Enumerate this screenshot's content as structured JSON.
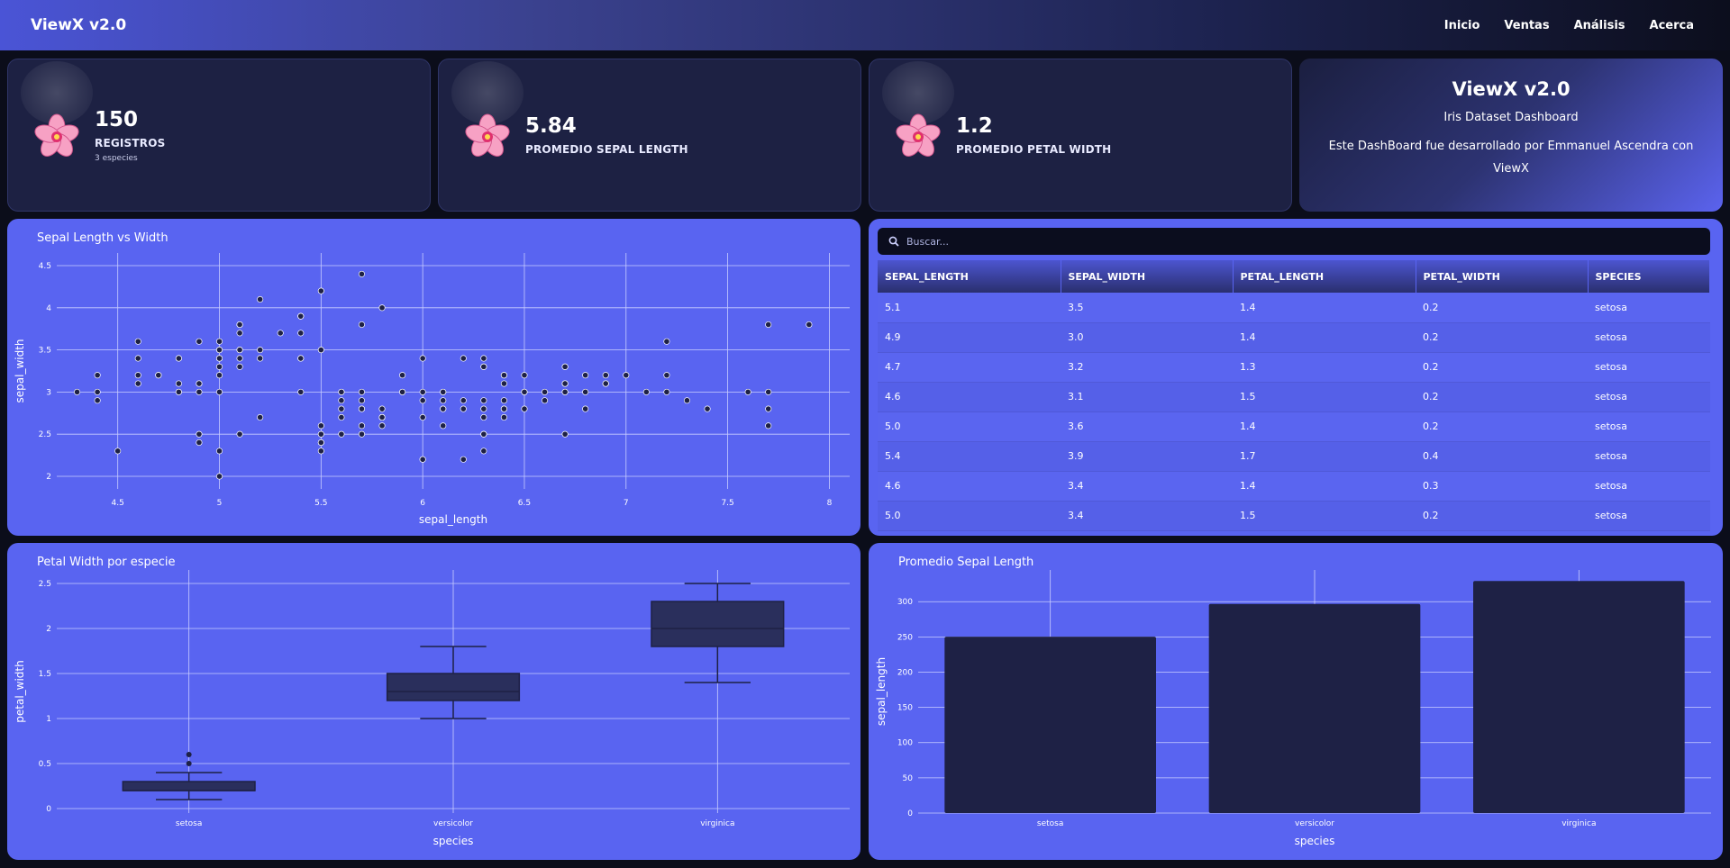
{
  "navbar": {
    "brand": "ViewX v2.0",
    "links": [
      "Inicio",
      "Ventas",
      "Análisis",
      "Acerca"
    ]
  },
  "kpis": [
    {
      "value": "150",
      "label": "REGISTROS",
      "sub": "3 especies",
      "icon": "cherry-blossom-icon"
    },
    {
      "value": "5.84",
      "label": "PROMEDIO SEPAL LENGTH",
      "icon": "cherry-blossom-icon"
    },
    {
      "value": "1.2",
      "label": "PROMEDIO PETAL WIDTH",
      "icon": "cherry-blossom-icon"
    }
  ],
  "info": {
    "title": "ViewX v2.0",
    "subtitle": "Iris Dataset Dashboard",
    "description": "Este DashBoard fue desarrollado por Emmanuel Ascendra con ViewX"
  },
  "table": {
    "search_placeholder": "Buscar...",
    "search_icon": "search-icon",
    "columns": [
      "SEPAL_LENGTH",
      "SEPAL_WIDTH",
      "PETAL_LENGTH",
      "PETAL_WIDTH",
      "SPECIES"
    ],
    "rows": [
      [
        "5.1",
        "3.5",
        "1.4",
        "0.2",
        "setosa"
      ],
      [
        "4.9",
        "3.0",
        "1.4",
        "0.2",
        "setosa"
      ],
      [
        "4.7",
        "3.2",
        "1.3",
        "0.2",
        "setosa"
      ],
      [
        "4.6",
        "3.1",
        "1.5",
        "0.2",
        "setosa"
      ],
      [
        "5.0",
        "3.6",
        "1.4",
        "0.2",
        "setosa"
      ],
      [
        "5.4",
        "3.9",
        "1.7",
        "0.4",
        "setosa"
      ],
      [
        "4.6",
        "3.4",
        "1.4",
        "0.3",
        "setosa"
      ],
      [
        "5.0",
        "3.4",
        "1.5",
        "0.2",
        "setosa"
      ]
    ]
  },
  "colors": {
    "panel": "#5964f1",
    "mark": "#1e2145",
    "grid": "#c9cdff"
  },
  "chart_data": [
    {
      "type": "scatter",
      "title": "Sepal Length vs Width",
      "xlabel": "sepal_length",
      "ylabel": "sepal_width",
      "xlim": [
        4.2,
        8.1
      ],
      "ylim": [
        1.85,
        4.65
      ],
      "xticks": [
        4.5,
        5,
        5.5,
        6,
        6.5,
        7,
        7.5,
        8
      ],
      "yticks": [
        2,
        2.5,
        3,
        3.5,
        4,
        4.5
      ],
      "points": [
        [
          5.1,
          3.5
        ],
        [
          4.9,
          3.0
        ],
        [
          4.7,
          3.2
        ],
        [
          4.6,
          3.1
        ],
        [
          5.0,
          3.6
        ],
        [
          5.4,
          3.9
        ],
        [
          4.6,
          3.4
        ],
        [
          5.0,
          3.4
        ],
        [
          4.4,
          2.9
        ],
        [
          4.9,
          3.1
        ],
        [
          5.4,
          3.7
        ],
        [
          4.8,
          3.4
        ],
        [
          4.8,
          3.0
        ],
        [
          4.3,
          3.0
        ],
        [
          5.8,
          4.0
        ],
        [
          5.7,
          4.4
        ],
        [
          5.4,
          3.9
        ],
        [
          5.1,
          3.5
        ],
        [
          5.7,
          3.8
        ],
        [
          5.1,
          3.8
        ],
        [
          5.4,
          3.4
        ],
        [
          5.1,
          3.7
        ],
        [
          4.6,
          3.6
        ],
        [
          5.1,
          3.3
        ],
        [
          4.8,
          3.4
        ],
        [
          5.0,
          3.0
        ],
        [
          5.0,
          3.4
        ],
        [
          5.2,
          3.5
        ],
        [
          5.2,
          3.4
        ],
        [
          4.7,
          3.2
        ],
        [
          4.8,
          3.1
        ],
        [
          5.4,
          3.4
        ],
        [
          5.2,
          4.1
        ],
        [
          5.5,
          4.2
        ],
        [
          4.9,
          3.1
        ],
        [
          5.0,
          3.2
        ],
        [
          5.5,
          3.5
        ],
        [
          4.9,
          3.6
        ],
        [
          4.4,
          3.0
        ],
        [
          5.1,
          3.4
        ],
        [
          5.0,
          3.5
        ],
        [
          4.5,
          2.3
        ],
        [
          4.4,
          3.2
        ],
        [
          5.0,
          3.5
        ],
        [
          5.1,
          3.8
        ],
        [
          4.8,
          3.0
        ],
        [
          5.1,
          3.8
        ],
        [
          4.6,
          3.2
        ],
        [
          5.3,
          3.7
        ],
        [
          5.0,
          3.3
        ],
        [
          7.0,
          3.2
        ],
        [
          6.4,
          3.2
        ],
        [
          6.9,
          3.1
        ],
        [
          5.5,
          2.3
        ],
        [
          6.5,
          2.8
        ],
        [
          5.7,
          2.8
        ],
        [
          6.3,
          3.3
        ],
        [
          4.9,
          2.4
        ],
        [
          6.6,
          2.9
        ],
        [
          5.2,
          2.7
        ],
        [
          5.0,
          2.0
        ],
        [
          5.9,
          3.0
        ],
        [
          6.0,
          2.2
        ],
        [
          6.1,
          2.9
        ],
        [
          5.6,
          2.9
        ],
        [
          6.7,
          3.1
        ],
        [
          5.6,
          3.0
        ],
        [
          5.8,
          2.7
        ],
        [
          6.2,
          2.2
        ],
        [
          5.6,
          2.5
        ],
        [
          5.9,
          3.2
        ],
        [
          6.1,
          2.8
        ],
        [
          6.3,
          2.5
        ],
        [
          6.1,
          2.8
        ],
        [
          6.4,
          2.9
        ],
        [
          6.6,
          3.0
        ],
        [
          6.8,
          2.8
        ],
        [
          6.7,
          3.0
        ],
        [
          6.0,
          2.9
        ],
        [
          5.7,
          2.6
        ],
        [
          5.5,
          2.4
        ],
        [
          5.5,
          2.4
        ],
        [
          5.8,
          2.7
        ],
        [
          6.0,
          2.7
        ],
        [
          5.4,
          3.0
        ],
        [
          6.0,
          3.4
        ],
        [
          6.7,
          3.1
        ],
        [
          6.3,
          2.3
        ],
        [
          5.6,
          3.0
        ],
        [
          5.5,
          2.5
        ],
        [
          5.5,
          2.6
        ],
        [
          6.1,
          3.0
        ],
        [
          5.8,
          2.6
        ],
        [
          5.0,
          2.3
        ],
        [
          5.6,
          2.7
        ],
        [
          5.7,
          3.0
        ],
        [
          5.7,
          2.9
        ],
        [
          6.2,
          2.9
        ],
        [
          5.1,
          2.5
        ],
        [
          5.7,
          2.8
        ],
        [
          6.3,
          3.3
        ],
        [
          5.8,
          2.7
        ],
        [
          7.1,
          3.0
        ],
        [
          6.3,
          2.9
        ],
        [
          6.5,
          3.0
        ],
        [
          7.6,
          3.0
        ],
        [
          4.9,
          2.5
        ],
        [
          7.3,
          2.9
        ],
        [
          6.7,
          2.5
        ],
        [
          7.2,
          3.6
        ],
        [
          6.5,
          3.2
        ],
        [
          6.4,
          2.7
        ],
        [
          6.8,
          3.0
        ],
        [
          5.7,
          2.5
        ],
        [
          5.8,
          2.8
        ],
        [
          6.4,
          3.2
        ],
        [
          6.5,
          3.0
        ],
        [
          7.7,
          3.8
        ],
        [
          7.7,
          2.6
        ],
        [
          6.0,
          2.2
        ],
        [
          6.9,
          3.2
        ],
        [
          5.6,
          2.8
        ],
        [
          7.7,
          2.8
        ],
        [
          6.3,
          2.7
        ],
        [
          6.7,
          3.3
        ],
        [
          7.2,
          3.2
        ],
        [
          6.2,
          2.8
        ],
        [
          6.1,
          3.0
        ],
        [
          6.4,
          2.8
        ],
        [
          7.2,
          3.0
        ],
        [
          7.4,
          2.8
        ],
        [
          7.9,
          3.8
        ],
        [
          6.4,
          2.8
        ],
        [
          6.3,
          2.8
        ],
        [
          6.1,
          2.6
        ],
        [
          7.7,
          3.0
        ],
        [
          6.3,
          3.4
        ],
        [
          6.4,
          3.1
        ],
        [
          6.0,
          3.0
        ],
        [
          6.9,
          3.1
        ],
        [
          6.7,
          3.1
        ],
        [
          6.9,
          3.1
        ],
        [
          5.8,
          2.7
        ],
        [
          6.8,
          3.2
        ],
        [
          6.7,
          3.3
        ],
        [
          6.7,
          3.0
        ],
        [
          6.3,
          2.5
        ],
        [
          6.5,
          3.0
        ],
        [
          6.2,
          3.4
        ],
        [
          5.9,
          3.0
        ]
      ]
    },
    {
      "type": "box",
      "title": "Petal Width por especie",
      "xlabel": "species",
      "ylabel": "petal_width",
      "ylim": [
        -0.05,
        2.65
      ],
      "yticks": [
        0,
        0.5,
        1,
        1.5,
        2,
        2.5
      ],
      "categories": [
        "setosa",
        "versicolor",
        "virginica"
      ],
      "boxes": [
        {
          "min": 0.1,
          "q1": 0.2,
          "median": 0.2,
          "q3": 0.3,
          "max": 0.4,
          "outliers": [
            0.5,
            0.6
          ]
        },
        {
          "min": 1.0,
          "q1": 1.2,
          "median": 1.3,
          "q3": 1.5,
          "max": 1.8,
          "outliers": []
        },
        {
          "min": 1.4,
          "q1": 1.8,
          "median": 2.0,
          "q3": 2.3,
          "max": 2.5,
          "outliers": []
        }
      ]
    },
    {
      "type": "bar",
      "title": "Promedio Sepal Length",
      "xlabel": "species",
      "ylabel": "sepal_length",
      "ylim": [
        0,
        345
      ],
      "yticks": [
        0,
        50,
        100,
        150,
        200,
        250,
        300
      ],
      "categories": [
        "setosa",
        "versicolor",
        "virginica"
      ],
      "values": [
        250.3,
        296.8,
        329.4
      ]
    }
  ]
}
